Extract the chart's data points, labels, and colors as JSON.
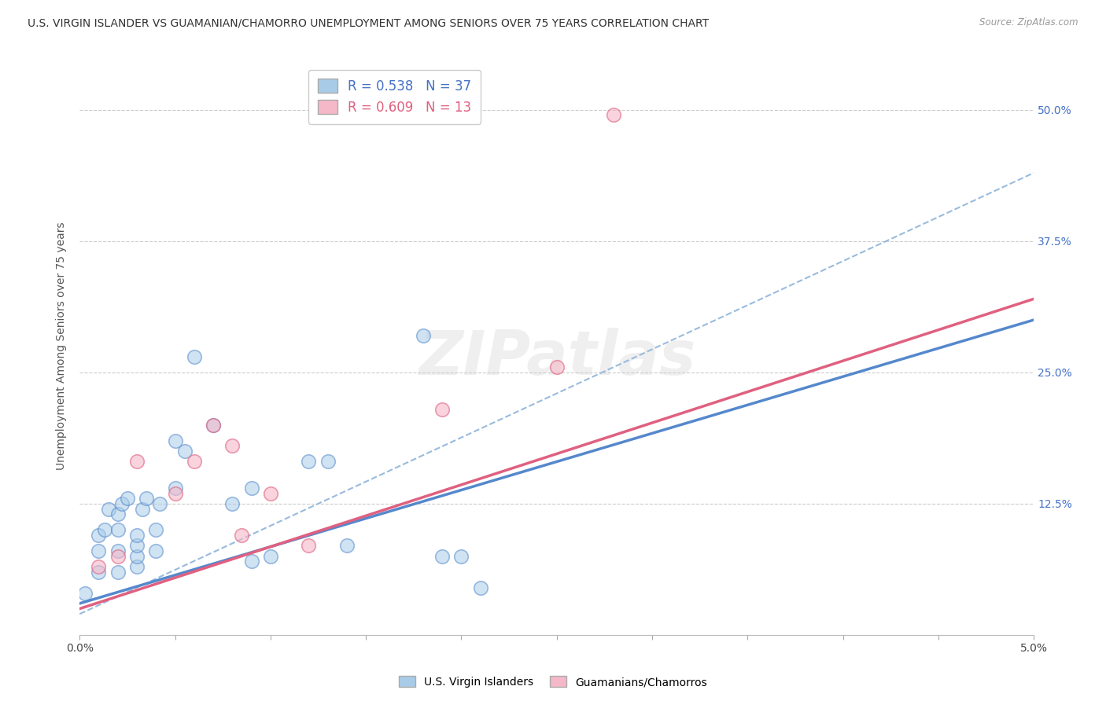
{
  "title": "U.S. VIRGIN ISLANDER VS GUAMANIAN/CHAMORRO UNEMPLOYMENT AMONG SENIORS OVER 75 YEARS CORRELATION CHART",
  "source": "Source: ZipAtlas.com",
  "ylabel": "Unemployment Among Seniors over 75 years",
  "xlim": [
    0.0,
    0.05
  ],
  "ylim": [
    0.0,
    0.55
  ],
  "xticks": [
    0.0,
    0.005,
    0.01,
    0.015,
    0.02,
    0.025,
    0.03,
    0.035,
    0.04,
    0.045,
    0.05
  ],
  "xticklabels": [
    "0.0%",
    "",
    "",
    "",
    "",
    "",
    "",
    "",
    "",
    "",
    "5.0%"
  ],
  "yticks": [
    0.0,
    0.125,
    0.25,
    0.375,
    0.5
  ],
  "yticklabels_right": [
    "",
    "12.5%",
    "25.0%",
    "37.5%",
    "50.0%"
  ],
  "blue_color": "#a8cce8",
  "pink_color": "#f5b8c8",
  "blue_line_color": "#5588cc",
  "pink_line_color": "#e06080",
  "dashed_color": "#99bbdd",
  "blue_R": 0.538,
  "blue_N": 37,
  "pink_R": 0.609,
  "pink_N": 13,
  "blue_label": "U.S. Virgin Islanders",
  "pink_label": "Guamanians/Chamorros",
  "watermark": "ZIPatlas",
  "background_color": "#ffffff",
  "grid_color": "#cccccc",
  "blue_scatter_x": [
    0.0003,
    0.001,
    0.001,
    0.001,
    0.0013,
    0.0015,
    0.002,
    0.002,
    0.002,
    0.002,
    0.0022,
    0.0025,
    0.003,
    0.003,
    0.003,
    0.003,
    0.0033,
    0.0035,
    0.004,
    0.004,
    0.0042,
    0.005,
    0.005,
    0.0055,
    0.006,
    0.007,
    0.008,
    0.009,
    0.009,
    0.01,
    0.012,
    0.013,
    0.014,
    0.018,
    0.019,
    0.02,
    0.021
  ],
  "blue_scatter_y": [
    0.04,
    0.06,
    0.08,
    0.095,
    0.1,
    0.12,
    0.06,
    0.08,
    0.1,
    0.115,
    0.125,
    0.13,
    0.065,
    0.075,
    0.085,
    0.095,
    0.12,
    0.13,
    0.08,
    0.1,
    0.125,
    0.185,
    0.14,
    0.175,
    0.265,
    0.2,
    0.125,
    0.14,
    0.07,
    0.075,
    0.165,
    0.165,
    0.085,
    0.285,
    0.075,
    0.075,
    0.045
  ],
  "pink_scatter_x": [
    0.001,
    0.002,
    0.003,
    0.005,
    0.006,
    0.007,
    0.008,
    0.0085,
    0.01,
    0.012,
    0.019,
    0.025,
    0.028
  ],
  "pink_scatter_y": [
    0.065,
    0.075,
    0.165,
    0.135,
    0.165,
    0.2,
    0.18,
    0.095,
    0.135,
    0.085,
    0.215,
    0.255,
    0.495
  ],
  "blue_trend_x": [
    0.0,
    0.05
  ],
  "blue_trend_y": [
    0.03,
    0.3
  ],
  "pink_trend_x": [
    0.0,
    0.05
  ],
  "pink_trend_y": [
    0.025,
    0.32
  ],
  "dashed_trend_x": [
    0.0,
    0.05
  ],
  "dashed_trend_y": [
    0.02,
    0.44
  ],
  "title_fontsize": 10,
  "axis_label_fontsize": 10,
  "tick_fontsize": 10,
  "legend_fontsize": 12
}
